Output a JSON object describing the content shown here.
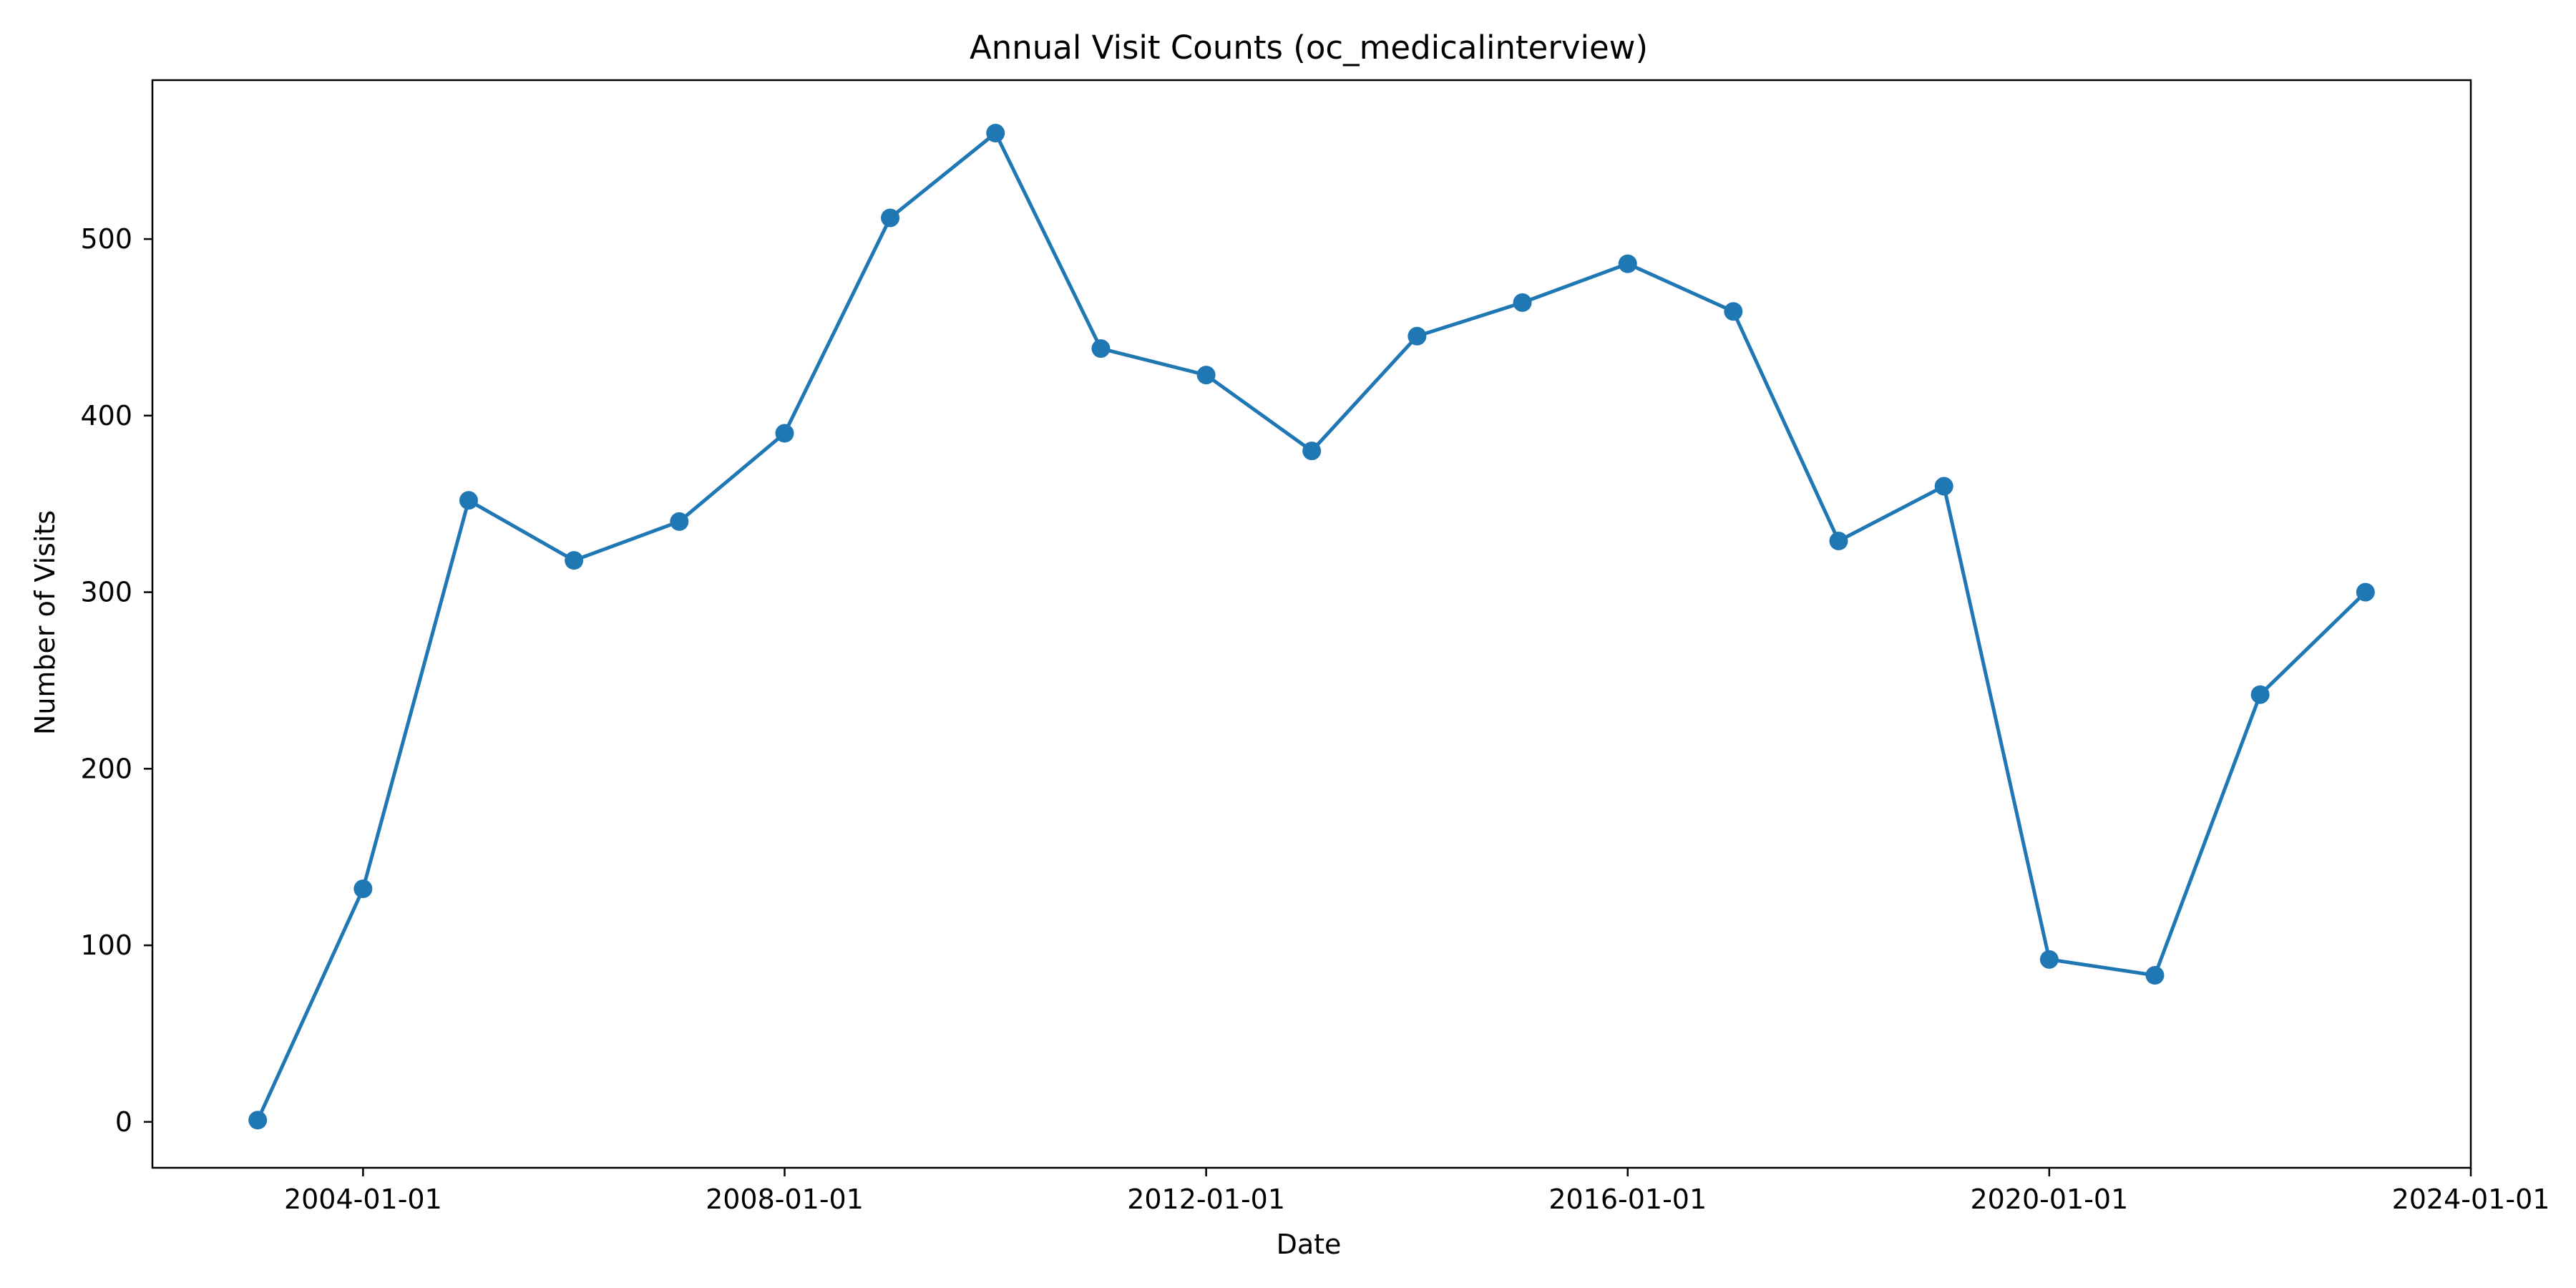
{
  "chart_data": {
    "type": "line",
    "title": "Annual Visit Counts (oc_medicalinterview)",
    "xlabel": "Date",
    "ylabel": "Number of Visits",
    "x_ticks": [
      "2004-01-01",
      "2008-01-01",
      "2012-01-01",
      "2016-01-01",
      "2020-01-01",
      "2024-01-01"
    ],
    "y_ticks": [
      0,
      100,
      200,
      300,
      400,
      500
    ],
    "xlim": [
      "2002-01-01",
      "2024-01-01"
    ],
    "ylim": [
      -26,
      590
    ],
    "grid": false,
    "colors": {
      "series": "#1f77b4",
      "axes": "#000000"
    },
    "series": [
      {
        "x": [
          "2003-01-01",
          "2004-01-01",
          "2005-01-01",
          "2006-01-01",
          "2007-01-01",
          "2008-01-01",
          "2009-01-01",
          "2010-01-01",
          "2011-01-01",
          "2012-01-01",
          "2013-01-01",
          "2014-01-01",
          "2015-01-01",
          "2016-01-01",
          "2017-01-01",
          "2018-01-01",
          "2019-01-01",
          "2020-01-01",
          "2021-01-01",
          "2022-01-01",
          "2023-01-01"
        ],
        "values": [
          1,
          132,
          352,
          318,
          340,
          390,
          512,
          560,
          438,
          423,
          380,
          445,
          464,
          486,
          459,
          329,
          360,
          92,
          83,
          242,
          300
        ]
      }
    ]
  }
}
